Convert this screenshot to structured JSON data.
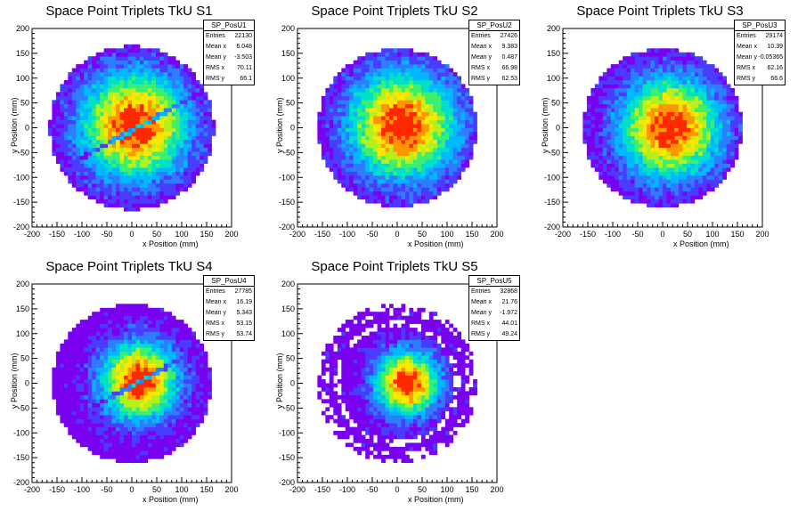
{
  "axis": {
    "xlabel": "x Position (mm)",
    "ylabel": "y Position (mm)",
    "xlim": [
      -200,
      200
    ],
    "ylim": [
      -200,
      200
    ],
    "ticks": [
      -200,
      -150,
      -100,
      -50,
      0,
      50,
      100,
      150,
      200
    ]
  },
  "stat_labels": {
    "entries": "Entries",
    "mean_x": "Mean x",
    "mean_y": "Mean y",
    "rms_x": "RMS x",
    "rms_y": "RMS y"
  },
  "colors": {
    "palette": [
      "#7a00f0",
      "#4a3cff",
      "#2d7dff",
      "#00b8ff",
      "#00e0c8",
      "#3cf06e",
      "#b4f01e",
      "#ffe600",
      "#ff9600",
      "#ff2800"
    ]
  },
  "chart_data": [
    {
      "type": "heatmap",
      "title": "Space Point Triplets TkU S1",
      "histogram": "SP_PosU1",
      "stats": {
        "entries": "22130",
        "mean_x": "6.048",
        "mean_y": "-3.503",
        "rms_x": "70.11",
        "rms_y": "66.1"
      },
      "radius": 165,
      "hotspot": [
        5,
        5
      ],
      "spread": 75,
      "gap": {
        "slope": 0.55,
        "offset": -5
      },
      "peak_color": "#ff2800"
    },
    {
      "type": "heatmap",
      "title": "Space Point Triplets TkU S2",
      "histogram": "SP_PosU2",
      "stats": {
        "entries": "27426",
        "mean_x": "9.383",
        "mean_y": "0.487",
        "rms_x": "66.98",
        "rms_y": "62.53"
      },
      "radius": 160,
      "hotspot": [
        10,
        5
      ],
      "spread": 75,
      "peak_color": "#ff2800"
    },
    {
      "type": "heatmap",
      "title": "Space Point Triplets TkU S3",
      "histogram": "SP_PosU3",
      "stats": {
        "entries": "29174",
        "mean_x": "10.39",
        "mean_y": "-0.05365",
        "rms_x": "62.16",
        "rms_y": "66.6"
      },
      "radius": 160,
      "hotspot": [
        15,
        0
      ],
      "spread": 70,
      "peak_color": "#ff2800"
    },
    {
      "type": "heatmap",
      "title": "Space Point Triplets TkU S4",
      "histogram": "SP_PosU4",
      "stats": {
        "entries": "27785",
        "mean_x": "16.19",
        "mean_y": "5.343",
        "rms_x": "53.15",
        "rms_y": "53.74"
      },
      "radius": 160,
      "hotspot": [
        15,
        5
      ],
      "spread": 55,
      "gap": {
        "slope": 0.55,
        "offset": -5
      },
      "peak_color": "#ff2800"
    },
    {
      "type": "heatmap",
      "title": "Space Point Triplets TkU S5",
      "histogram": "SP_PosU5",
      "stats": {
        "entries": "32868",
        "mean_x": "21.76",
        "mean_y": "-1.972",
        "rms_x": "44.01",
        "rms_y": "49.24"
      },
      "radius": 160,
      "hotspot": [
        20,
        0
      ],
      "spread": 45,
      "ring": true,
      "peak_color": "#ff2800"
    }
  ]
}
